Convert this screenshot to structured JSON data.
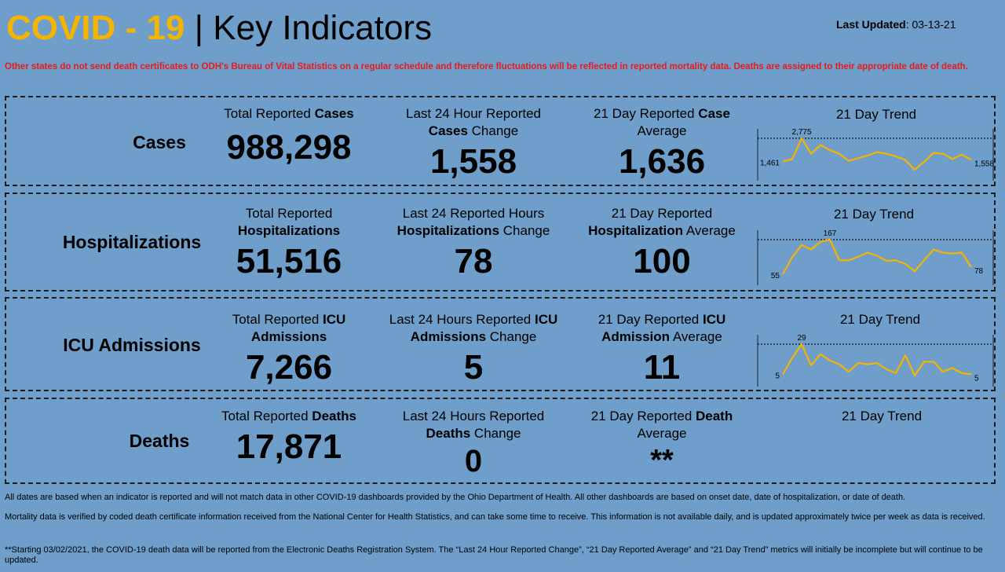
{
  "header": {
    "title_covid": "COVID - 19",
    "title_separator": " | ",
    "title_rest": "Key Indicators",
    "updated_label": "Last Updated",
    "updated_value": ": 03-13-21"
  },
  "warning": "Other states do not send death certificates to ODH's Bureau of Vital Statistics on a regular schedule and therefore fluctuations will be reflected in reported mortality data. Deaths are assigned to their appropriate date of death.",
  "sections": {
    "cases": {
      "label": "Cases",
      "total_pre": "Total Reported ",
      "total_bold": "Cases",
      "total_post": "",
      "total_value": "988,298",
      "change_pre": "Last 24 Hour Reported ",
      "change_bold": "Cases",
      "change_post": " Change",
      "change_value": "1,558",
      "avg_pre": "21 Day Reported ",
      "avg_bold": "Case",
      "avg_post": " Average",
      "avg_value": "1,636",
      "trend_title": "21 Day Trend",
      "trend": {
        "start": "1,461",
        "peak": "2,775",
        "end": "1,558",
        "values": [
          1461,
          1600,
          2775,
          1900,
          2400,
          2100,
          1900,
          1500,
          1650,
          1800,
          2000,
          1900,
          1750,
          1550,
          1000,
          1450,
          1950,
          1900,
          1600,
          1850,
          1558
        ]
      }
    },
    "hospitalizations": {
      "label": "Hospitalizations",
      "total_pre": "Total Reported ",
      "total_bold": "Hospitalizations",
      "total_post": "",
      "total_value": "51,516",
      "change_pre": "Last 24 Reported Hours ",
      "change_bold": "Hospitalizations",
      "change_post": " Change",
      "change_value": "78",
      "avg_pre": "21 Day Reported ",
      "avg_bold": "Hospitalization",
      "avg_post": " Average",
      "avg_value": "100",
      "trend_title": "21 Day Trend",
      "trend": {
        "start": "55",
        "peak": "167",
        "end": "78",
        "values": [
          55,
          110,
          150,
          135,
          160,
          167,
          100,
          100,
          112,
          125,
          115,
          98,
          100,
          88,
          65,
          100,
          135,
          125,
          122,
          125,
          78
        ]
      }
    },
    "icu": {
      "label": "ICU Admissions",
      "total_pre": "Total Reported ",
      "total_bold": "ICU Admissions",
      "total_post": "",
      "total_value": "7,266",
      "change_pre": "Last 24 Hours Reported ",
      "change_bold": "ICU Admissions",
      "change_post": " Change",
      "change_value": "5",
      "avg_pre": "21 Day Reported ",
      "avg_bold": "ICU Admission",
      "avg_post": " Average",
      "avg_value": "11",
      "trend_title": "21 Day Trend",
      "trend": {
        "start": "5",
        "peak": "29",
        "end": "5",
        "values": [
          5,
          18,
          29,
          12,
          21,
          16,
          13,
          7,
          14,
          13,
          14,
          9,
          6,
          20,
          4,
          15,
          15,
          7,
          10,
          6,
          5
        ]
      }
    },
    "deaths": {
      "label": "Deaths",
      "total_pre": "Total Reported ",
      "total_bold": "Deaths",
      "total_post": "",
      "total_value": "17,871",
      "change_pre": "Last 24 Hours Reported ",
      "change_bold": "Deaths",
      "change_post": " Change",
      "change_value": "0",
      "avg_pre": "21 Day Reported ",
      "avg_bold": "Death",
      "avg_post": " Average",
      "avg_value": "**",
      "trend_title": "21 Day Trend"
    }
  },
  "footer": {
    "note1": "All dates are based when an indicator is reported and will not match data in other COVID-19 dashboards provided by the Ohio Department of Health. All other dashboards are based on onset date, date of hospitalization, or date of death.",
    "note2": "Mortality data is verified by coded death certificate information received from the National Center for Health Statistics, and can take some time to receive. This information is not available daily, and is updated approximately twice per week as data is received.",
    "note3": "**Starting 03/02/2021, the COVID-19 death data will be reported from the Electronic Deaths Registration System. The “Last 24 Hour Reported Change”, “21 Day Reported Average” and “21 Day Trend” metrics will initially be incomplete but will continue to be updated."
  },
  "colors": {
    "background": "#6e9ec9",
    "accent": "#f5b400",
    "warning": "#e81b1b",
    "trend_line": "#f5b400"
  },
  "chart_data": [
    {
      "type": "line",
      "series": [
        {
          "values": [
            1461,
            1600,
            2775,
            1900,
            2400,
            2100,
            1900,
            1500,
            1650,
            1800,
            2000,
            1900,
            1750,
            1550,
            1000,
            1450,
            1950,
            1900,
            1600,
            1850,
            1558
          ]
        }
      ]
    },
    {
      "type": "line",
      "series": [
        {
          "values": [
            55,
            110,
            150,
            135,
            160,
            167,
            100,
            100,
            112,
            125,
            115,
            98,
            100,
            88,
            65,
            100,
            135,
            125,
            122,
            125,
            78
          ]
        }
      ]
    },
    {
      "type": "line",
      "series": [
        {
          "values": [
            5,
            18,
            29,
            12,
            21,
            16,
            13,
            7,
            14,
            13,
            14,
            9,
            6,
            20,
            4,
            15,
            15,
            7,
            10,
            6,
            5
          ]
        }
      ]
    }
  ]
}
